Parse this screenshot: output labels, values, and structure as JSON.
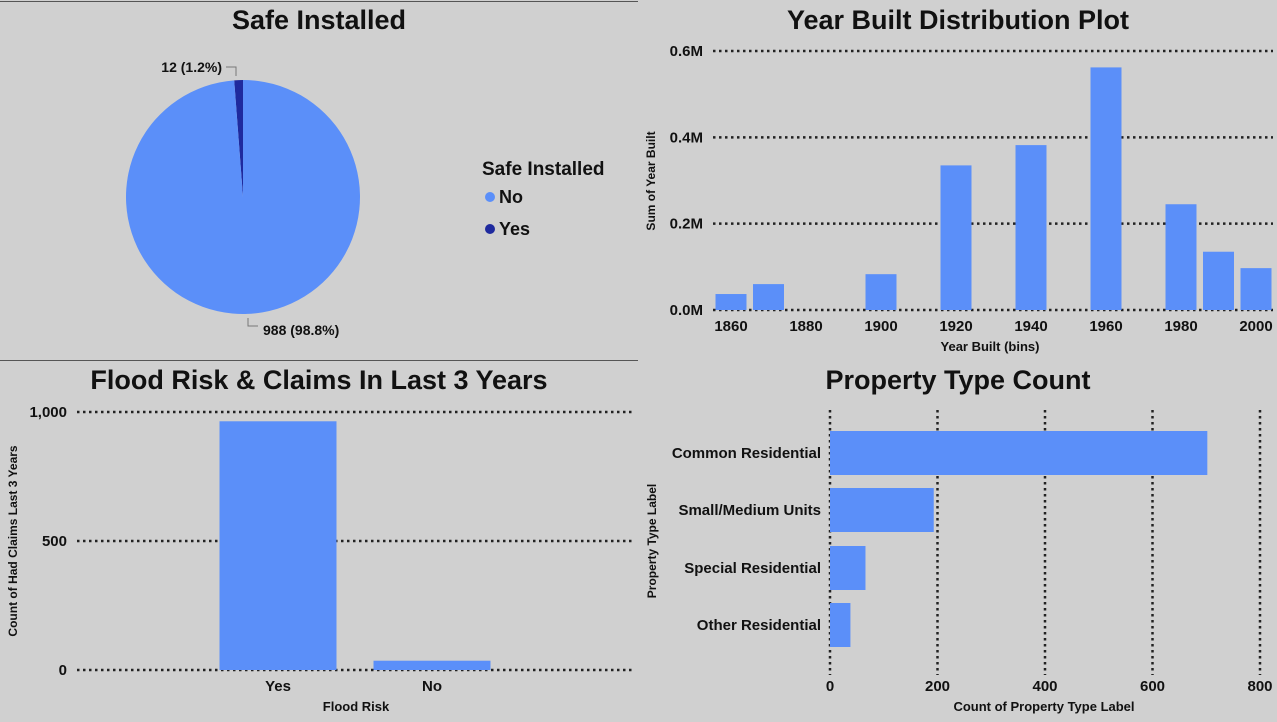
{
  "colors": {
    "no": "#5b8ff9",
    "yes": "#1f2a9e",
    "bar": "#5b8ff9",
    "background": "#d0d0d0",
    "text": "#111111"
  },
  "chart_data": [
    {
      "type": "pie",
      "title": "Safe Installed",
      "legend_title": "Safe Installed",
      "legend_position": "right",
      "slices": [
        {
          "name": "No",
          "value": 988,
          "label": "988 (98.8%)"
        },
        {
          "name": "Yes",
          "value": 12,
          "label": "12 (1.2%)"
        }
      ]
    },
    {
      "type": "bar",
      "title": "Year Built Distribution Plot",
      "xlabel": "Year Built (bins)",
      "ylabel": "Sum of Year Built",
      "x_ticks": [
        "1860",
        "1880",
        "1900",
        "1920",
        "1940",
        "1960",
        "1980",
        "2000"
      ],
      "y_ticks": [
        "0.0M",
        "0.2M",
        "0.4M",
        "0.6M"
      ],
      "ylim": [
        0,
        600000
      ],
      "grid": "horizontal dotted",
      "bins": [
        {
          "x": 1860,
          "value": 37000
        },
        {
          "x": 1870,
          "value": 60000
        },
        {
          "x": 1900,
          "value": 83000
        },
        {
          "x": 1920,
          "value": 335000
        },
        {
          "x": 1940,
          "value": 382000
        },
        {
          "x": 1960,
          "value": 562000
        },
        {
          "x": 1980,
          "value": 245000
        },
        {
          "x": 1990,
          "value": 135000
        },
        {
          "x": 2000,
          "value": 97000
        }
      ]
    },
    {
      "type": "bar",
      "title": "Flood Risk & Claims In Last 3 Years",
      "xlabel": "Flood Risk",
      "ylabel": "Count of Had Claims Last 3 Years",
      "categories": [
        "Yes",
        "No"
      ],
      "values": [
        964,
        36
      ],
      "y_ticks": [
        "0",
        "500",
        "1,000"
      ],
      "ylim": [
        0,
        1000
      ],
      "grid": "horizontal dotted"
    },
    {
      "type": "bar",
      "orientation": "horizontal",
      "title": "Property Type Count",
      "xlabel": "Count of Property Type Label",
      "ylabel": "Property Type Label",
      "categories": [
        "Common Residential",
        "Small/Medium Units",
        "Special Residential",
        "Other Residential"
      ],
      "values": [
        702,
        193,
        66,
        38
      ],
      "x_ticks": [
        "0",
        "200",
        "400",
        "600",
        "800"
      ],
      "xlim": [
        0,
        800
      ],
      "grid": "vertical dotted"
    }
  ]
}
